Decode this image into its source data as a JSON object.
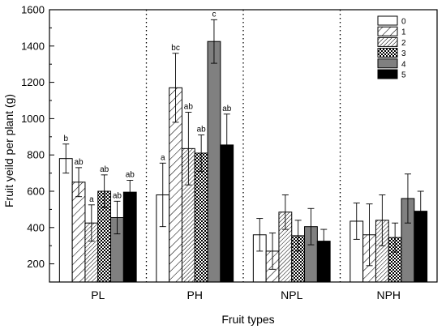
{
  "chart_data": {
    "type": "bar",
    "title": "",
    "xlabel": "Fruit types",
    "ylabel": "Fruit yeild per plant (g)",
    "ylim": [
      100,
      1600
    ],
    "yticks": [
      200,
      400,
      600,
      800,
      1000,
      1200,
      1400,
      1600
    ],
    "categories": [
      "PL",
      "PH",
      "NPL",
      "NPH"
    ],
    "legend_position": "top-right",
    "series": [
      {
        "name": "0",
        "pattern": "white",
        "values": [
          780,
          580,
          360,
          435
        ],
        "errors": [
          80,
          175,
          90,
          100
        ],
        "labels": [
          "b",
          "a",
          "",
          ""
        ]
      },
      {
        "name": "1",
        "pattern": "diagonal-sparse",
        "values": [
          650,
          1170,
          270,
          360
        ],
        "errors": [
          80,
          190,
          100,
          170
        ],
        "labels": [
          "ab",
          "bc",
          "",
          ""
        ]
      },
      {
        "name": "2",
        "pattern": "diagonal-dense",
        "values": [
          425,
          835,
          485,
          440
        ],
        "errors": [
          100,
          200,
          95,
          140
        ],
        "labels": [
          "a",
          "ab",
          "",
          ""
        ]
      },
      {
        "name": "3",
        "pattern": "checker",
        "values": [
          600,
          810,
          355,
          345
        ],
        "errors": [
          90,
          100,
          85,
          80
        ],
        "labels": [
          "ab",
          "ab",
          "",
          ""
        ]
      },
      {
        "name": "4",
        "pattern": "gray",
        "values": [
          455,
          1425,
          405,
          560
        ],
        "errors": [
          90,
          120,
          100,
          135
        ],
        "labels": [
          "ab",
          "c",
          "",
          ""
        ]
      },
      {
        "name": "5",
        "pattern": "black",
        "values": [
          595,
          855,
          325,
          490
        ],
        "errors": [
          65,
          170,
          65,
          110
        ],
        "labels": [
          "ab",
          "ab",
          "",
          ""
        ]
      }
    ],
    "colors": {
      "gray": "#808080",
      "black": "#000000",
      "white": "#ffffff"
    }
  }
}
